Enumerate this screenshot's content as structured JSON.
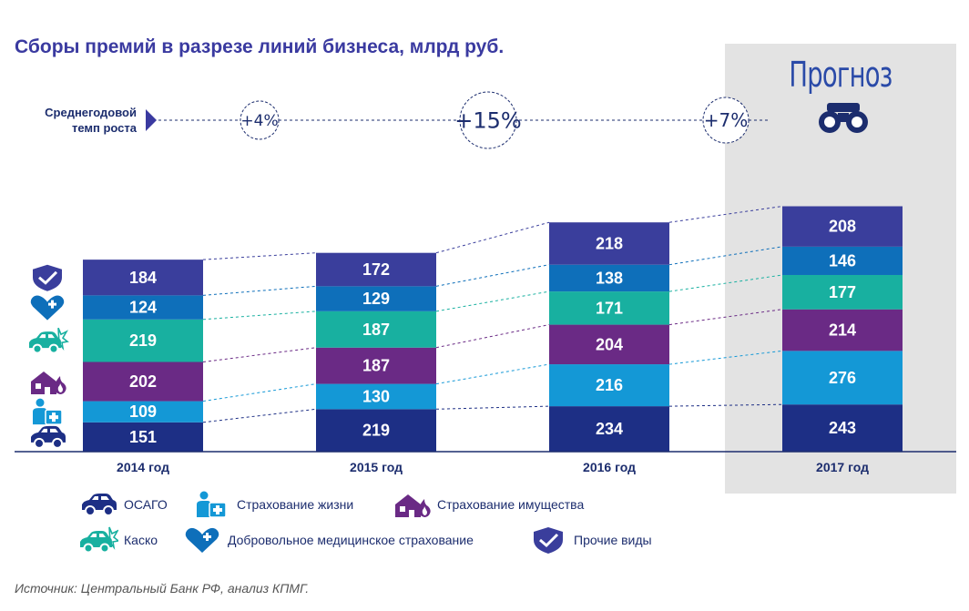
{
  "title": "Сборы премий в разрезе линий бизнеса, млрд руб.",
  "cagr": {
    "label_line1": "Среднегодовой",
    "label_line2": "темп роста",
    "values": [
      "+4%",
      "+15%",
      "+7%"
    ]
  },
  "forecast_label": "Прогноз",
  "source": "Источник: Центральный Банк РФ, анализ КПМГ.",
  "colors": {
    "osago": "#1d2f85",
    "life": "#1498d6",
    "property": "#6a2a85",
    "kasko": "#18b0a0",
    "dms": "#0e6fba",
    "other": "#3a3e9c",
    "forecast_bg": "#e3e3e3",
    "title": "#3a3aa0"
  },
  "legend": [
    {
      "key": "osago",
      "label": "ОСАГО",
      "icon": "car-icon"
    },
    {
      "key": "life",
      "label": "Страхование жизни",
      "icon": "person-plus-icon"
    },
    {
      "key": "property",
      "label": "Страхование имущества",
      "icon": "house-fire-icon"
    },
    {
      "key": "kasko",
      "label": "Каско",
      "icon": "car-crash-icon"
    },
    {
      "key": "dms",
      "label": "Добровольное медицинское страхование",
      "icon": "heart-plus-icon"
    },
    {
      "key": "other",
      "label": "Прочие виды",
      "icon": "shield-check-icon"
    }
  ],
  "chart_data": {
    "type": "bar",
    "stacked": true,
    "categories": [
      "2014 год",
      "2015 год",
      "2016 год",
      "2017 год"
    ],
    "forecast_category": "2017 год",
    "series": [
      {
        "key": "osago",
        "name": "ОСАГО",
        "values": [
          151,
          219,
          234,
          243
        ]
      },
      {
        "key": "life",
        "name": "Страхование жизни",
        "values": [
          109,
          130,
          216,
          276
        ]
      },
      {
        "key": "property",
        "name": "Страхование имущества",
        "values": [
          202,
          187,
          204,
          214
        ]
      },
      {
        "key": "kasko",
        "name": "Каско",
        "values": [
          219,
          187,
          171,
          177
        ]
      },
      {
        "key": "dms",
        "name": "Добровольное медицинское страхование",
        "values": [
          124,
          129,
          138,
          146
        ]
      },
      {
        "key": "other",
        "name": "Прочие виды",
        "values": [
          184,
          172,
          218,
          208
        ]
      }
    ]
  }
}
